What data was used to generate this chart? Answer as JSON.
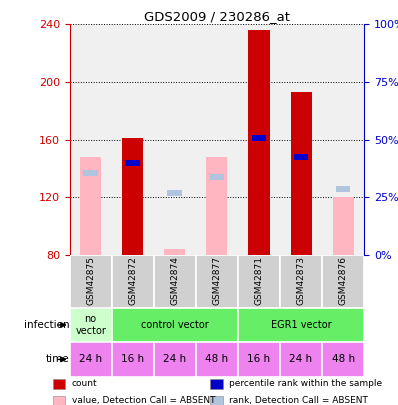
{
  "title": "GDS2009 / 230286_at",
  "samples": [
    "GSM42875",
    "GSM42872",
    "GSM42874",
    "GSM42877",
    "GSM42871",
    "GSM42873",
    "GSM42876"
  ],
  "count_values": [
    null,
    161,
    null,
    null,
    236,
    193,
    null
  ],
  "count_absent_values": [
    148,
    null,
    84,
    148,
    null,
    null,
    120
  ],
  "rank_values_left": [
    null,
    144,
    null,
    null,
    161,
    148,
    null
  ],
  "rank_values_absent": [
    137,
    null,
    123,
    134,
    null,
    null,
    126
  ],
  "ylim": [
    80,
    240
  ],
  "yticks": [
    80,
    120,
    160,
    200,
    240
  ],
  "y2lim": [
    0,
    100
  ],
  "y2ticks": [
    0,
    25,
    50,
    75,
    100
  ],
  "y2ticklabels": [
    "0%",
    "25%",
    "50%",
    "75%",
    "100%"
  ],
  "time_labels": [
    "24 h",
    "16 h",
    "24 h",
    "48 h",
    "16 h",
    "24 h",
    "48 h"
  ],
  "time_color": "#ee82ee",
  "bar_color_count": "#cc0000",
  "bar_color_rank": "#0000cc",
  "bar_color_count_absent": "#ffb6c1",
  "bar_color_rank_absent": "#b0c4de",
  "bg_color": "#d0d0d0",
  "plot_bg": "#f0f0f0",
  "yaxis_color": "#cc0000",
  "y2axis_color": "#0000cc",
  "infection_groups": [
    {
      "label": "no\nvector",
      "start": 0,
      "end": 1,
      "color": "#ccffcc"
    },
    {
      "label": "control vector",
      "start": 1,
      "end": 4,
      "color": "#66ee66"
    },
    {
      "label": "EGR1 vector",
      "start": 4,
      "end": 7,
      "color": "#66ee66"
    }
  ],
  "legend_items": [
    {
      "color": "#cc0000",
      "label": "count"
    },
    {
      "color": "#0000cc",
      "label": "percentile rank within the sample"
    },
    {
      "color": "#ffb6c1",
      "label": "value, Detection Call = ABSENT"
    },
    {
      "color": "#b0c4de",
      "label": "rank, Detection Call = ABSENT"
    }
  ]
}
